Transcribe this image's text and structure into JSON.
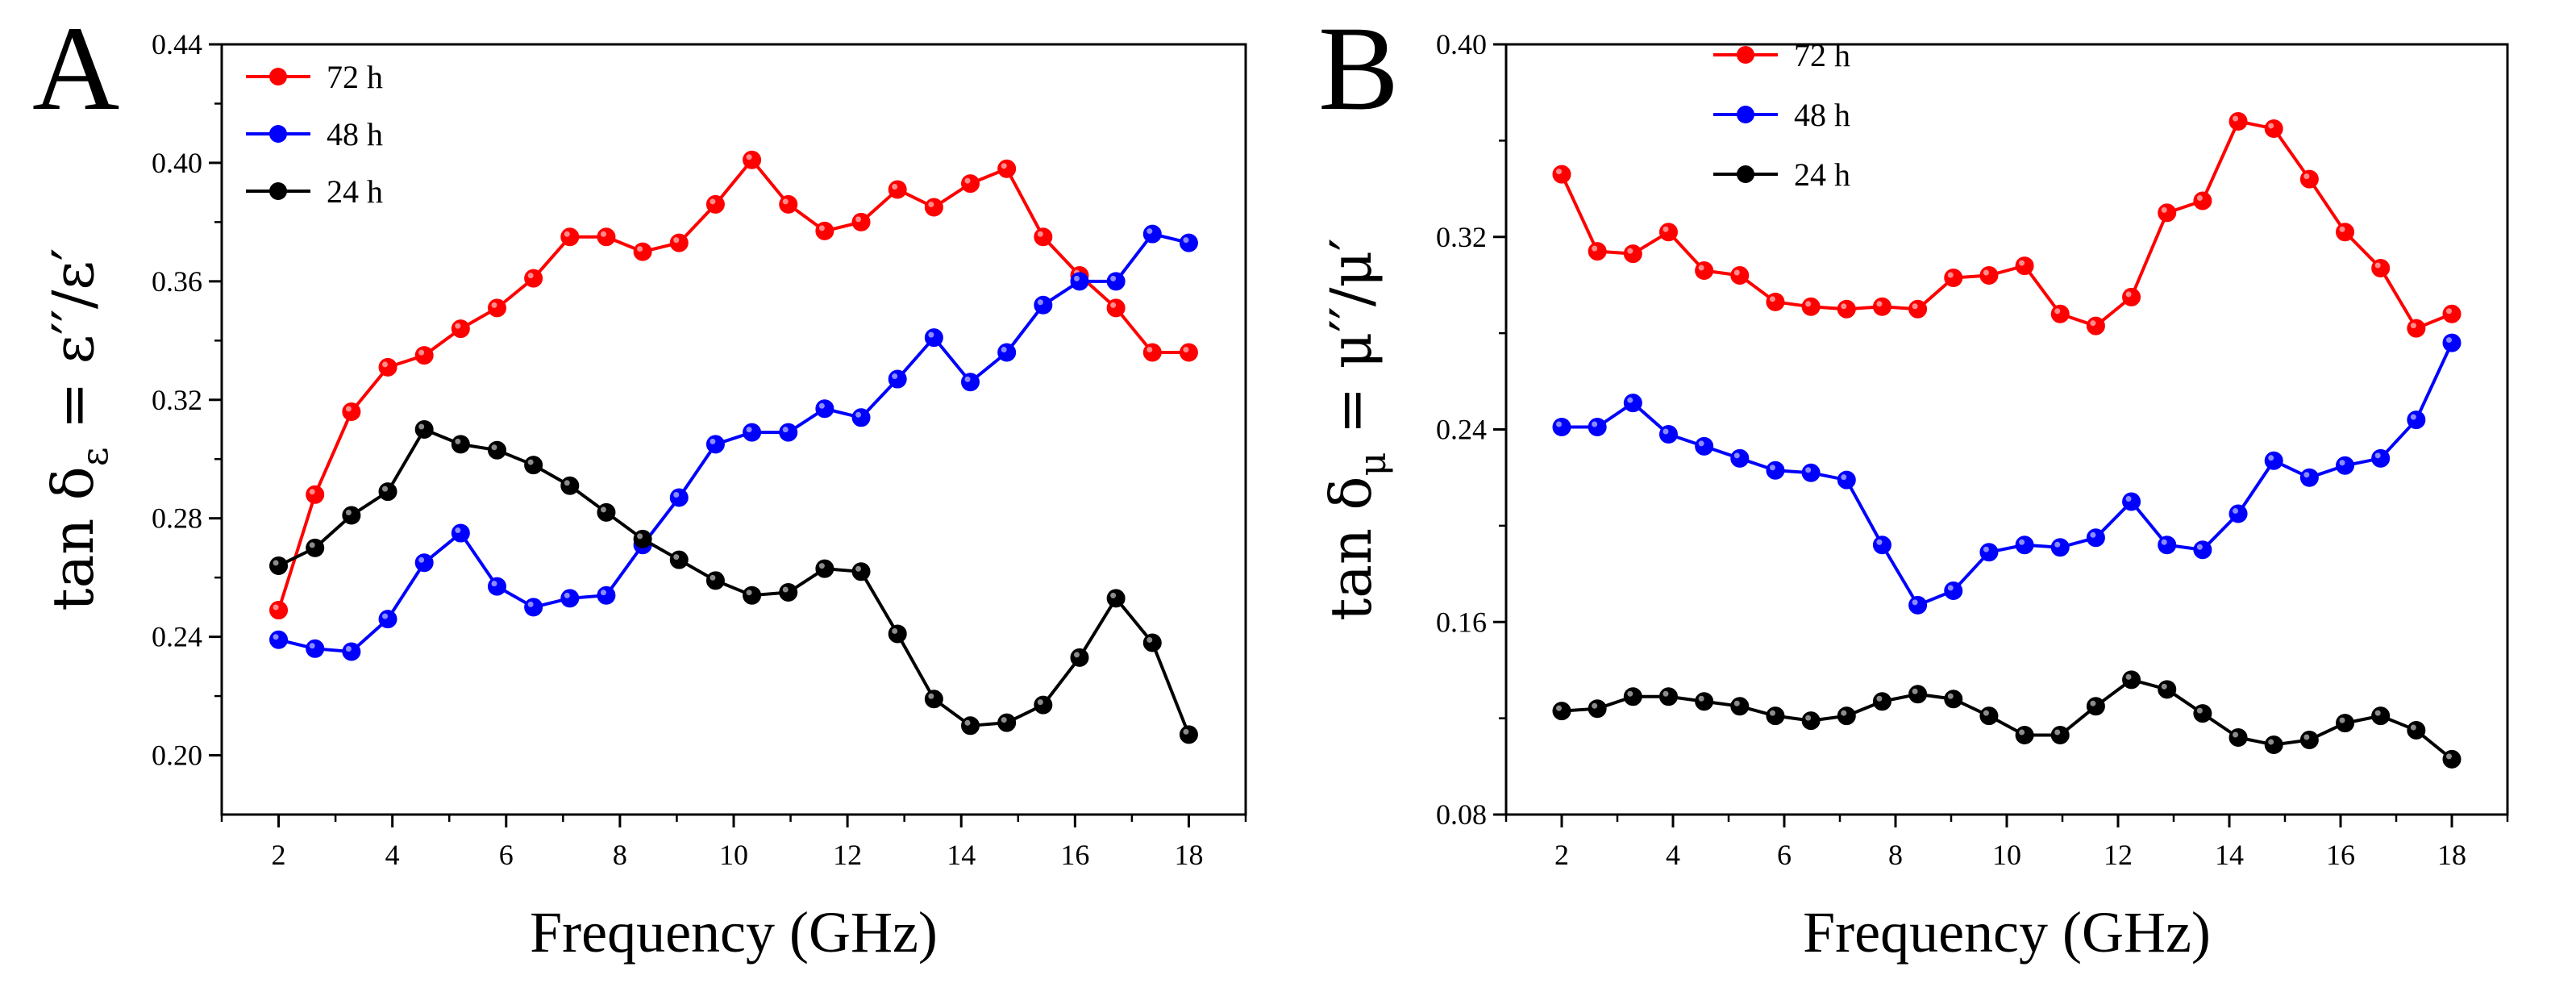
{
  "chart_data": [
    {
      "type": "line",
      "panel_label": "A",
      "xlabel": "Frequency (GHz)",
      "ylabel": "tan δε = ε′′/ε′",
      "ylabel_parts": {
        "prefix": "tan δ",
        "sub": "ε",
        "rest": " = ε′′/ε′"
      },
      "xlim": [
        1,
        19
      ],
      "ylim": [
        0.18,
        0.44
      ],
      "xticks": [
        2,
        4,
        6,
        8,
        10,
        12,
        14,
        16,
        18
      ],
      "xtick_labels": [
        "2",
        "4",
        "6",
        "8",
        "10",
        "12",
        "14",
        "16",
        "18"
      ],
      "yticks": [
        0.2,
        0.24,
        0.28,
        0.32,
        0.36,
        0.4,
        0.44
      ],
      "ytick_labels": [
        "0.20",
        "0.24",
        "0.28",
        "0.32",
        "0.36",
        "0.40",
        "0.44"
      ],
      "legend_position": "top-left",
      "x": [
        2,
        2.64,
        3.28,
        3.92,
        4.56,
        5.2,
        5.84,
        6.48,
        7.12,
        7.76,
        8.4,
        9.04,
        9.68,
        10.32,
        10.96,
        11.6,
        12.24,
        12.88,
        13.52,
        14.16,
        14.8,
        15.44,
        16.08,
        16.72,
        17.36,
        18
      ],
      "series": [
        {
          "name": "72 h",
          "color": "#ff0000",
          "values": [
            0.249,
            0.288,
            0.316,
            0.331,
            0.335,
            0.344,
            0.351,
            0.361,
            0.375,
            0.375,
            0.37,
            0.373,
            0.386,
            0.401,
            0.386,
            0.377,
            0.38,
            0.391,
            0.385,
            0.393,
            0.398,
            0.375,
            0.362,
            0.351,
            0.336,
            0.336
          ]
        },
        {
          "name": "48 h",
          "color": "#0000ff",
          "values": [
            0.239,
            0.236,
            0.235,
            0.246,
            0.265,
            0.275,
            0.257,
            0.25,
            0.253,
            0.254,
            0.271,
            0.287,
            0.305,
            0.309,
            0.309,
            0.317,
            0.314,
            0.327,
            0.341,
            0.326,
            0.336,
            0.352,
            0.36,
            0.36,
            0.376,
            0.373
          ]
        },
        {
          "name": "24 h",
          "color": "#000000",
          "values": [
            0.264,
            0.27,
            0.281,
            0.289,
            0.31,
            0.305,
            0.303,
            0.298,
            0.291,
            0.282,
            0.273,
            0.266,
            0.259,
            0.254,
            0.255,
            0.263,
            0.262,
            0.241,
            0.219,
            0.21,
            0.211,
            0.217,
            0.233,
            0.253,
            0.238,
            0.207
          ]
        }
      ]
    },
    {
      "type": "line",
      "panel_label": "B",
      "xlabel": "Frequency (GHz)",
      "ylabel": "tan δμ = μ′′/μ′",
      "ylabel_parts": {
        "prefix": "tan δ",
        "sub": "μ",
        "rest": " = μ′′/μ′"
      },
      "xlim": [
        1,
        19
      ],
      "ylim": [
        0.08,
        0.4
      ],
      "xticks": [
        2,
        4,
        6,
        8,
        10,
        12,
        14,
        16,
        18
      ],
      "xtick_labels": [
        "2",
        "4",
        "6",
        "8",
        "10",
        "12",
        "14",
        "16",
        "18"
      ],
      "yticks": [
        0.08,
        0.16,
        0.24,
        0.32,
        0.4
      ],
      "ytick_labels": [
        "0.08",
        "0.16",
        "0.24",
        "0.32",
        "0.40"
      ],
      "legend_position": "top-center",
      "x": [
        2,
        2.64,
        3.28,
        3.92,
        4.56,
        5.2,
        5.84,
        6.48,
        7.12,
        7.76,
        8.4,
        9.04,
        9.68,
        10.32,
        10.96,
        11.6,
        12.24,
        12.88,
        13.52,
        14.16,
        14.8,
        15.44,
        16.08,
        16.72,
        17.36,
        18
      ],
      "series": [
        {
          "name": "72 h",
          "color": "#ff0000",
          "values": [
            0.346,
            0.314,
            0.313,
            0.322,
            0.306,
            0.304,
            0.293,
            0.291,
            0.29,
            0.291,
            0.29,
            0.303,
            0.304,
            0.308,
            0.288,
            0.283,
            0.295,
            0.33,
            0.335,
            0.368,
            0.365,
            0.344,
            0.322,
            0.307,
            0.282,
            0.288
          ]
        },
        {
          "name": "48 h",
          "color": "#0000ff",
          "values": [
            0.241,
            0.241,
            0.251,
            0.238,
            0.233,
            0.228,
            0.223,
            0.222,
            0.219,
            0.192,
            0.167,
            0.173,
            0.189,
            0.192,
            0.191,
            0.195,
            0.21,
            0.192,
            0.19,
            0.205,
            0.227,
            0.22,
            0.225,
            0.228,
            0.244,
            0.276
          ]
        },
        {
          "name": "24 h",
          "color": "#000000",
          "values": [
            0.123,
            0.124,
            0.129,
            0.129,
            0.127,
            0.125,
            0.121,
            0.119,
            0.121,
            0.127,
            0.13,
            0.128,
            0.121,
            0.113,
            0.113,
            0.125,
            0.136,
            0.132,
            0.122,
            0.112,
            0.109,
            0.111,
            0.118,
            0.121,
            0.115,
            0.103
          ]
        }
      ]
    }
  ]
}
